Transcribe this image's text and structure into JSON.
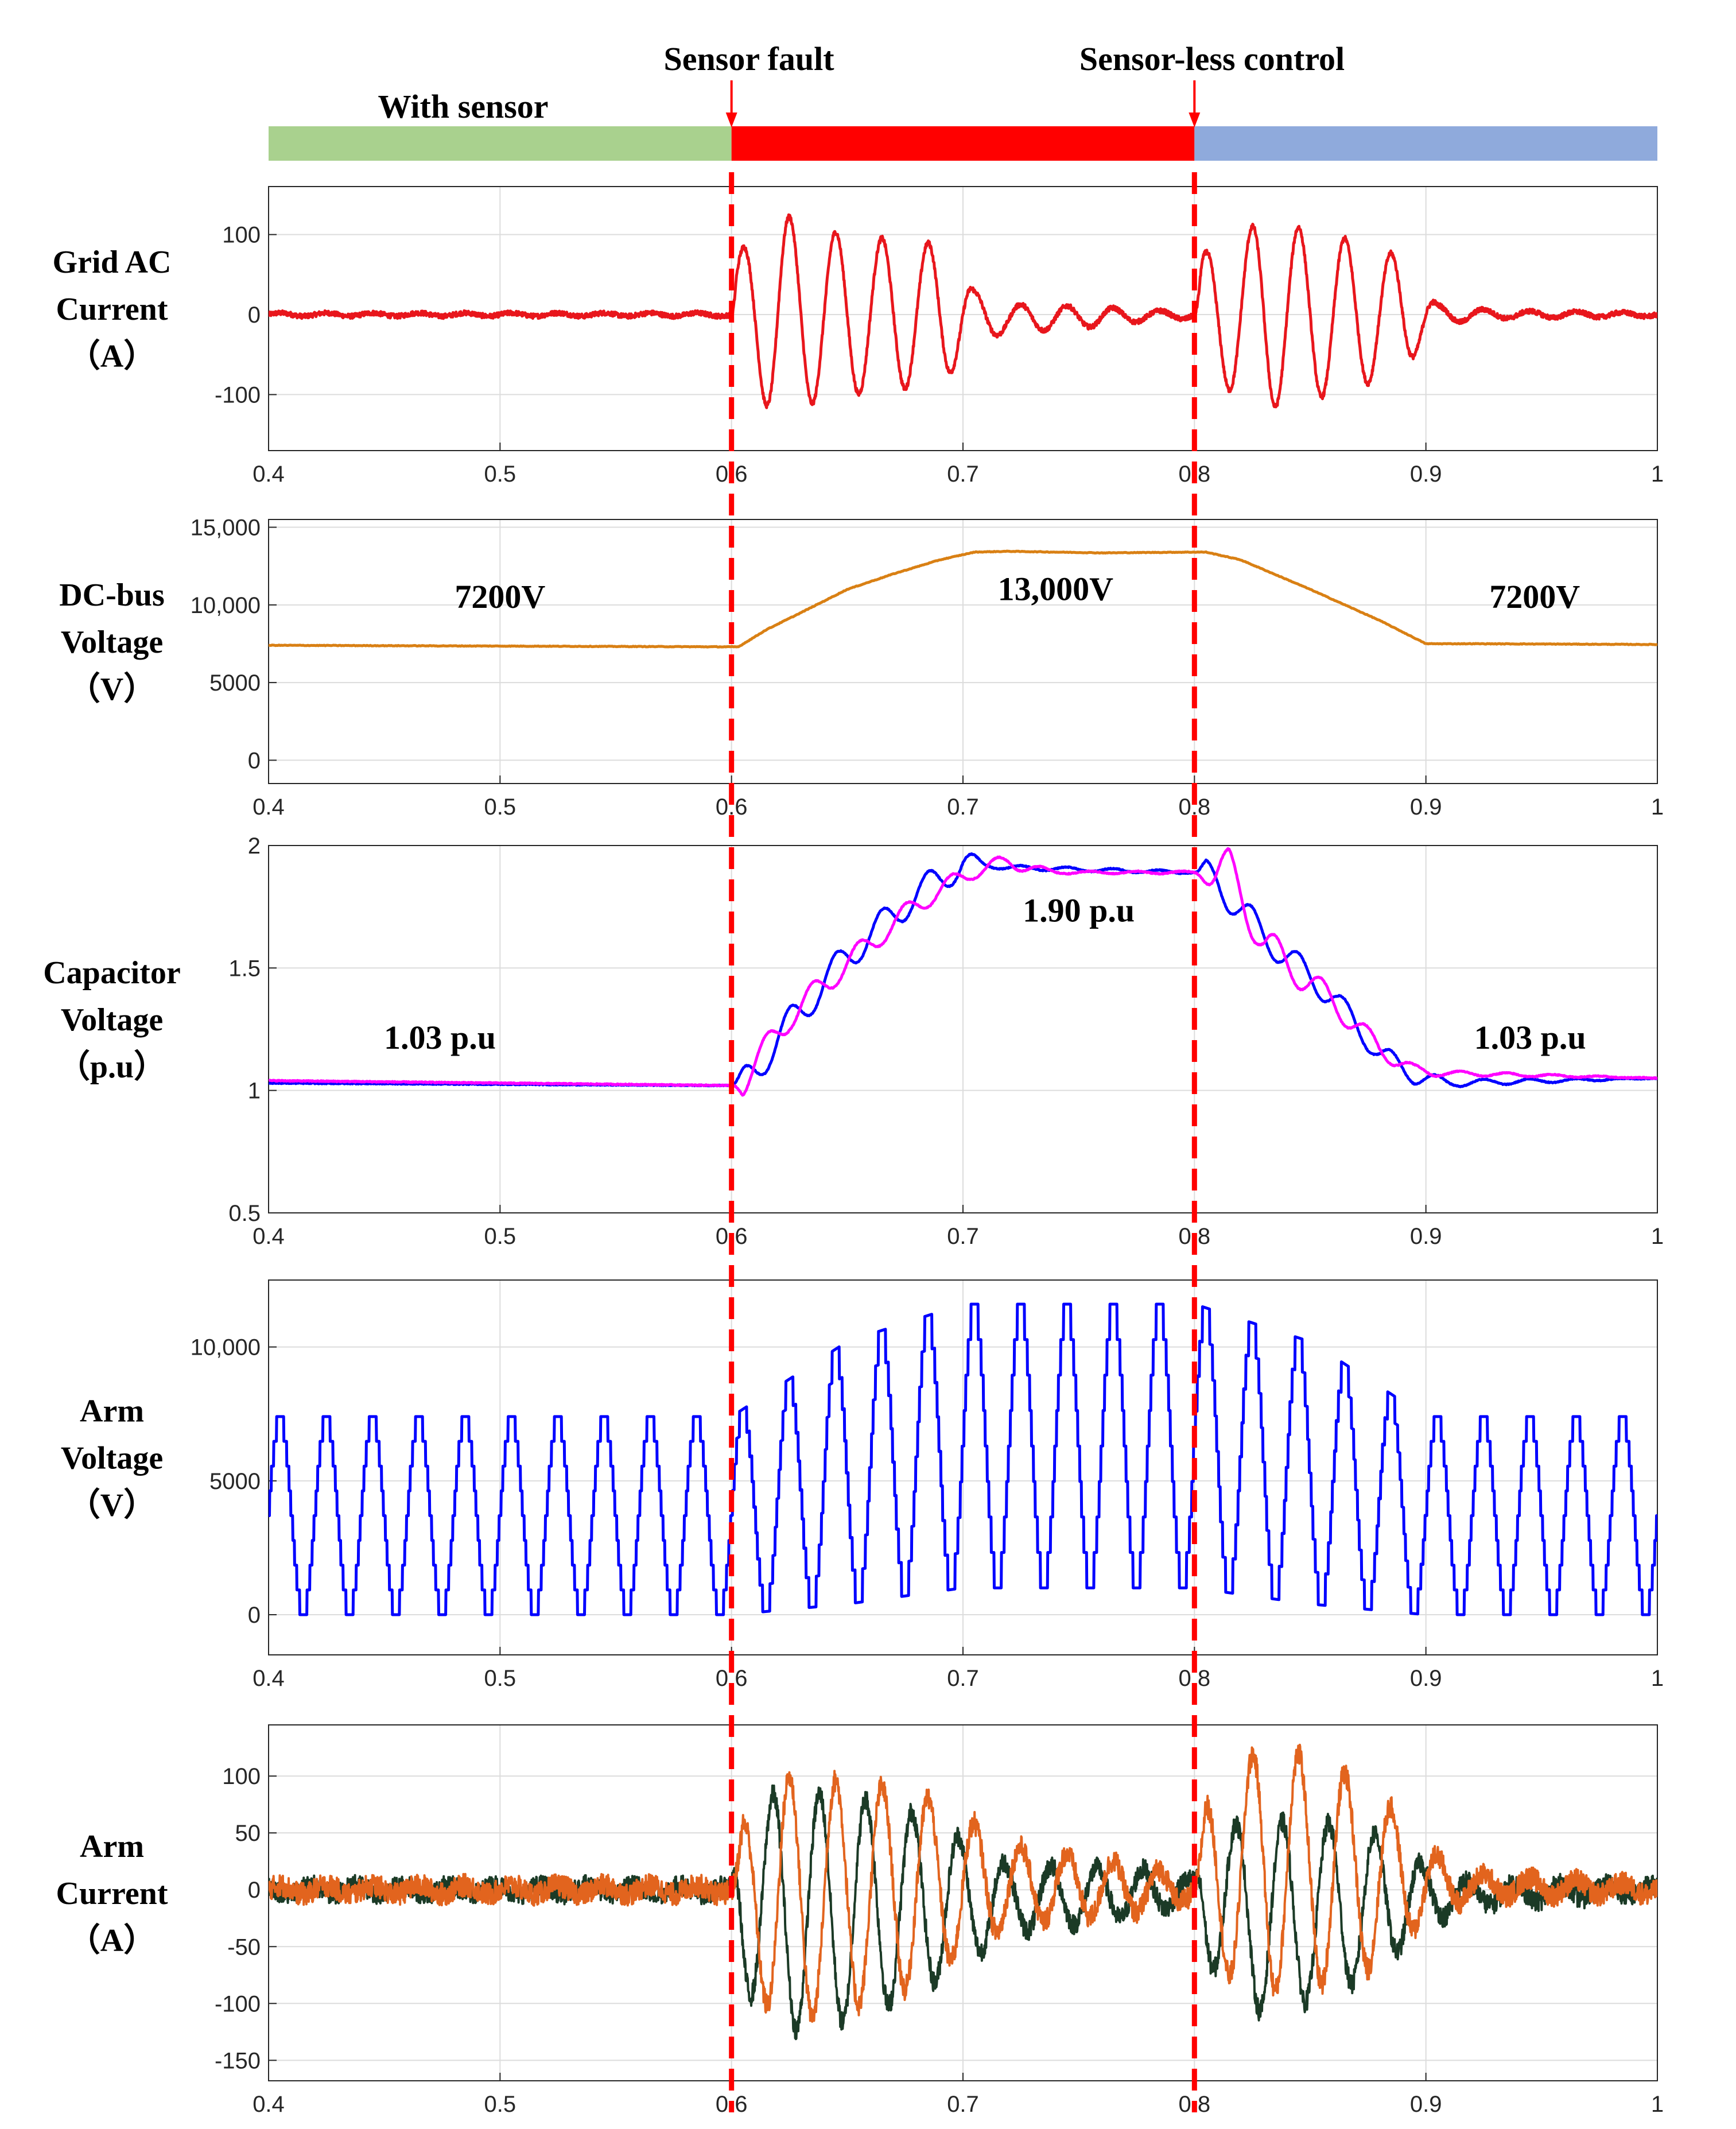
{
  "chart_data": {
    "type": "line",
    "title": "",
    "events": [
      {
        "time": 0.6,
        "label": "Sensor fault"
      },
      {
        "time": 0.8,
        "label": "Sensor-less control"
      }
    ],
    "phase_bar": [
      {
        "label": "With sensor",
        "start": 0.4,
        "end": 0.6,
        "color": "#a9d18e"
      },
      {
        "label": "",
        "start": 0.6,
        "end": 0.8,
        "color": "#ff0000"
      },
      {
        "label": "",
        "start": 0.8,
        "end": 1.0,
        "color": "#8faadc"
      }
    ],
    "event_line_color": "#ff0000",
    "x": {
      "range": [
        0.4,
        1.0
      ],
      "ticks": [
        0.4,
        0.5,
        0.6,
        0.7,
        0.8,
        0.9,
        1.0
      ],
      "tick_labels": [
        "0.4",
        "0.5",
        "0.6",
        "0.7",
        "0.8",
        "0.9",
        "1"
      ]
    },
    "panels": [
      {
        "id": "grid-ac-current",
        "ylabel": [
          "Grid AC",
          "Current",
          "（A）"
        ],
        "ylim": [
          -170,
          160
        ],
        "yticks": [
          100,
          0,
          -100
        ],
        "ytick_labels": [
          "100",
          "0",
          "-100"
        ],
        "grid": true,
        "annotations": [],
        "series": [
          {
            "name": "Grid AC current",
            "color": "#e8161c",
            "stroke": 5,
            "kind": "oscillation",
            "envelope": [
              [
                0.4,
                2
              ],
              [
                0.6,
                2
              ],
              [
                0.602,
                75
              ],
              [
                0.62,
                128
              ],
              [
                0.64,
                105
              ],
              [
                0.66,
                97
              ],
              [
                0.69,
                88
              ],
              [
                0.7,
                55
              ],
              [
                0.705,
                30
              ],
              [
                0.72,
                18
              ],
              [
                0.76,
                12
              ],
              [
                0.78,
                6
              ],
              [
                0.8,
                5
              ],
              [
                0.803,
                75
              ],
              [
                0.83,
                118
              ],
              [
                0.86,
                100
              ],
              [
                0.89,
                72
              ],
              [
                0.9,
                30
              ],
              [
                0.905,
                12
              ],
              [
                0.93,
                5
              ],
              [
                1.0,
                2
              ]
            ],
            "offset": [
              [
                0.4,
                0
              ],
              [
                0.7,
                0
              ],
              [
                0.72,
                -5
              ],
              [
                0.8,
                0
              ],
              [
                1.0,
                0
              ]
            ],
            "freq": 50,
            "noise": 3
          }
        ]
      },
      {
        "id": "dc-bus-voltage",
        "ylabel": [
          "DC-bus",
          "Voltage",
          "（V）"
        ],
        "ylim": [
          -1500,
          15500
        ],
        "yticks": [
          15000,
          10000,
          5000,
          0
        ],
        "ytick_labels": [
          "15,000",
          "10,000",
          "5000",
          "0"
        ],
        "grid": true,
        "annotations": [
          {
            "text": "7200V",
            "x": 0.5,
            "y": 9800
          },
          {
            "text": "13,000V",
            "x": 0.74,
            "y": 10300
          },
          {
            "text": "7200V",
            "x": 0.947,
            "y": 9800
          }
        ],
        "series": [
          {
            "name": "DC-bus voltage",
            "color": "#d98014",
            "stroke": 5,
            "kind": "curve",
            "points": [
              [
                0.4,
                7400
              ],
              [
                0.5,
                7350
              ],
              [
                0.6,
                7300
              ],
              [
                0.603,
                7300
              ],
              [
                0.615,
                8400
              ],
              [
                0.63,
                9500
              ],
              [
                0.65,
                11000
              ],
              [
                0.67,
                12000
              ],
              [
                0.69,
                12900
              ],
              [
                0.705,
                13400
              ],
              [
                0.72,
                13450
              ],
              [
                0.76,
                13350
              ],
              [
                0.8,
                13400
              ],
              [
                0.805,
                13400
              ],
              [
                0.82,
                12900
              ],
              [
                0.85,
                11000
              ],
              [
                0.88,
                9000
              ],
              [
                0.9,
                7500
              ],
              [
                0.92,
                7500
              ],
              [
                1.0,
                7450
              ]
            ]
          }
        ]
      },
      {
        "id": "capacitor-voltage",
        "ylabel": [
          "Capacitor",
          "Voltage",
          "（p.u）"
        ],
        "ylim": [
          0.5,
          2.0
        ],
        "yticks": [
          2,
          1.5,
          1,
          0.5
        ],
        "ytick_labels": [
          "2",
          "1.5",
          "1",
          "0.5"
        ],
        "grid": true,
        "annotations": [
          {
            "text": "1.03 p.u",
            "x": 0.474,
            "y": 1.17
          },
          {
            "text": "1.90 p.u",
            "x": 0.75,
            "y": 1.69
          },
          {
            "text": "1.03 p.u",
            "x": 0.945,
            "y": 1.17
          }
        ],
        "series": [
          {
            "name": "Capacitor voltage 1",
            "color": "#0000ff",
            "stroke": 5,
            "kind": "ripple",
            "points": [
              [
                0.4,
                1.03
              ],
              [
                0.6,
                1.02
              ],
              [
                0.605,
                1.02
              ],
              [
                0.625,
                1.27
              ],
              [
                0.65,
                1.55
              ],
              [
                0.68,
                1.8
              ],
              [
                0.7,
                1.93
              ],
              [
                0.72,
                1.91
              ],
              [
                0.8,
                1.89
              ],
              [
                0.81,
                1.85
              ],
              [
                0.83,
                1.63
              ],
              [
                0.86,
                1.38
              ],
              [
                0.88,
                1.15
              ],
              [
                0.895,
                1.06
              ],
              [
                0.91,
                1.03
              ],
              [
                1.0,
                1.05
              ]
            ],
            "ripple": [
              [
                0.4,
                0.0
              ],
              [
                0.6,
                0.0
              ],
              [
                0.605,
                0.07
              ],
              [
                0.7,
                0.06
              ],
              [
                0.71,
                0.01
              ],
              [
                0.8,
                0.005
              ],
              [
                0.805,
                0.07
              ],
              [
                0.89,
                0.04
              ],
              [
                0.91,
                0.015
              ],
              [
                1.0,
                0.0
              ]
            ]
          },
          {
            "name": "Capacitor voltage 2",
            "color": "#ff00ff",
            "stroke": 5,
            "kind": "ripple",
            "phase": 3.14,
            "points": [
              [
                0.4,
                1.04
              ],
              [
                0.6,
                1.02
              ],
              [
                0.605,
                1.04
              ],
              [
                0.625,
                1.3
              ],
              [
                0.65,
                1.52
              ],
              [
                0.68,
                1.76
              ],
              [
                0.705,
                1.9
              ],
              [
                0.72,
                1.93
              ],
              [
                0.74,
                1.89
              ],
              [
                0.8,
                1.89
              ],
              [
                0.815,
                1.9
              ],
              [
                0.83,
                1.6
              ],
              [
                0.86,
                1.36
              ],
              [
                0.88,
                1.17
              ],
              [
                0.895,
                1.08
              ],
              [
                0.91,
                1.07
              ],
              [
                1.0,
                1.05
              ]
            ],
            "ripple": [
              [
                0.4,
                0.0
              ],
              [
                0.6,
                0.0
              ],
              [
                0.605,
                0.06
              ],
              [
                0.72,
                0.03
              ],
              [
                0.74,
                0.005
              ],
              [
                0.8,
                0.005
              ],
              [
                0.81,
                0.09
              ],
              [
                0.89,
                0.03
              ],
              [
                0.91,
                0.01
              ],
              [
                1.0,
                0.0
              ]
            ]
          }
        ]
      },
      {
        "id": "arm-voltage",
        "ylabel": [
          "Arm",
          "Voltage",
          "（V）"
        ],
        "ylim": [
          -1500,
          12500
        ],
        "yticks": [
          10000,
          5000,
          0
        ],
        "ytick_labels": [
          "10,000",
          "5000",
          "0"
        ],
        "grid": true,
        "annotations": [],
        "series": [
          {
            "name": "Arm voltage",
            "color": "#0000ff",
            "stroke": 5,
            "kind": "staircase",
            "center": [
              [
                0.4,
                3700
              ],
              [
                0.6,
                3700
              ],
              [
                0.65,
                5300
              ],
              [
                0.7,
                6300
              ],
              [
                0.8,
                6300
              ],
              [
                0.85,
                5300
              ],
              [
                0.9,
                3700
              ],
              [
                1.0,
                3700
              ]
            ],
            "amplitude": [
              [
                0.4,
                3700
              ],
              [
                0.6,
                3700
              ],
              [
                0.65,
                4900
              ],
              [
                0.7,
                5300
              ],
              [
                0.8,
                5300
              ],
              [
                0.85,
                4900
              ],
              [
                0.9,
                3700
              ],
              [
                1.0,
                3700
              ]
            ],
            "freq": 50,
            "steps": 8
          }
        ]
      },
      {
        "id": "arm-current",
        "ylabel": [
          "Arm",
          "Current",
          "（A）"
        ],
        "ylim": [
          -168,
          145
        ],
        "yticks": [
          100,
          50,
          0,
          -50,
          -100,
          -150
        ],
        "ytick_labels": [
          "100",
          "50",
          "0",
          "-50",
          "-100",
          "-150"
        ],
        "grid": true,
        "annotations": [],
        "series": [
          {
            "name": "Arm current 1",
            "color": "#1b3a26",
            "stroke": 4,
            "kind": "oscillation",
            "phase": 2.2,
            "envelope": [
              [
                0.4,
                4
              ],
              [
                0.6,
                4
              ],
              [
                0.605,
                80
              ],
              [
                0.62,
                105
              ],
              [
                0.65,
                100
              ],
              [
                0.68,
                80
              ],
              [
                0.7,
                55
              ],
              [
                0.72,
                30
              ],
              [
                0.78,
                20
              ],
              [
                0.8,
                8
              ],
              [
                0.805,
                60
              ],
              [
                0.83,
                85
              ],
              [
                0.86,
                75
              ],
              [
                0.88,
                60
              ],
              [
                0.9,
                25
              ],
              [
                0.92,
                10
              ],
              [
                1.0,
                4
              ]
            ],
            "offset": [
              [
                0.4,
                0
              ],
              [
                0.6,
                0
              ],
              [
                0.62,
                -20
              ],
              [
                0.7,
                -10
              ],
              [
                0.8,
                0
              ],
              [
                0.83,
                -25
              ],
              [
                0.9,
                -5
              ],
              [
                1.0,
                0
              ]
            ],
            "freq": 50,
            "noise": 9
          },
          {
            "name": "Arm current 2",
            "color": "#e2641e",
            "stroke": 4,
            "kind": "oscillation",
            "phase": 0,
            "envelope": [
              [
                0.4,
                4
              ],
              [
                0.6,
                4
              ],
              [
                0.605,
                60
              ],
              [
                0.62,
                110
              ],
              [
                0.65,
                100
              ],
              [
                0.68,
                85
              ],
              [
                0.7,
                60
              ],
              [
                0.72,
                35
              ],
              [
                0.78,
                20
              ],
              [
                0.8,
                8
              ],
              [
                0.805,
                70
              ],
              [
                0.83,
                110
              ],
              [
                0.86,
                95
              ],
              [
                0.88,
                75
              ],
              [
                0.9,
                30
              ],
              [
                0.92,
                10
              ],
              [
                1.0,
                4
              ]
            ],
            "offset": [
              [
                0.4,
                0
              ],
              [
                0.6,
                0
              ],
              [
                0.62,
                -10
              ],
              [
                0.7,
                5
              ],
              [
                0.8,
                0
              ],
              [
                0.83,
                20
              ],
              [
                0.9,
                5
              ],
              [
                1.0,
                0
              ]
            ],
            "freq": 50,
            "noise": 10
          }
        ]
      }
    ]
  }
}
